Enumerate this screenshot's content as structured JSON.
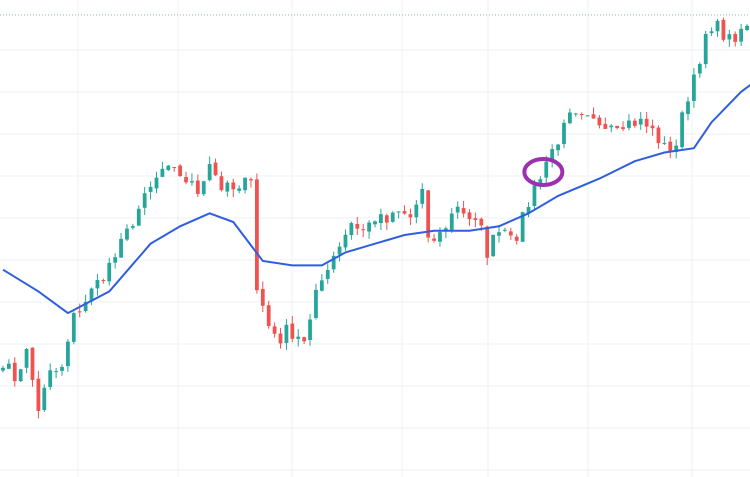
{
  "colors": {
    "up": "#26a69a",
    "down": "#ef5350",
    "ma": "#2f5fe0",
    "grid": "#eef0f3",
    "annotation": "#9b30b0",
    "background": "#ffffff"
  },
  "chart_data": {
    "type": "candlestick",
    "title": "",
    "xlabel": "",
    "ylabel": "",
    "grid": true,
    "legend": "none",
    "ylim": [
      0,
      100
    ],
    "overlay": {
      "type": "moving-average",
      "color": "#2f5fe0"
    },
    "annotation": {
      "shape": "ellipse",
      "color": "#9b30b0",
      "near_index": 91
    },
    "anchors": [
      [
        0,
        21
      ],
      [
        2,
        17
      ],
      [
        4,
        23
      ],
      [
        6,
        10
      ],
      [
        8,
        18
      ],
      [
        10,
        19
      ],
      [
        12,
        31
      ],
      [
        15,
        37
      ],
      [
        19,
        45
      ],
      [
        23,
        56
      ],
      [
        27,
        65
      ],
      [
        30,
        64
      ],
      [
        33,
        60
      ],
      [
        35,
        67
      ],
      [
        37,
        61
      ],
      [
        40,
        60
      ],
      [
        42,
        64
      ],
      [
        43,
        38
      ],
      [
        45,
        29
      ],
      [
        47,
        26
      ],
      [
        48,
        28
      ],
      [
        50,
        27
      ],
      [
        51,
        26
      ],
      [
        52,
        30
      ],
      [
        53,
        36
      ],
      [
        55,
        43
      ],
      [
        57,
        48
      ],
      [
        59,
        53
      ],
      [
        61,
        51
      ],
      [
        63,
        54
      ],
      [
        65,
        53
      ],
      [
        67,
        55
      ],
      [
        69,
        54
      ],
      [
        71,
        60
      ],
      [
        72,
        48
      ],
      [
        74,
        50
      ],
      [
        77,
        57
      ],
      [
        79,
        54
      ],
      [
        81,
        51
      ],
      [
        82,
        46
      ],
      [
        84,
        52
      ],
      [
        86,
        51
      ],
      [
        87,
        50
      ],
      [
        90,
        61
      ],
      [
        92,
        67
      ],
      [
        94,
        72
      ],
      [
        96,
        77
      ],
      [
        100,
        76
      ],
      [
        104,
        76
      ],
      [
        108,
        76
      ],
      [
        110,
        74
      ],
      [
        112,
        70
      ],
      [
        113,
        70
      ],
      [
        114,
        71
      ],
      [
        115,
        77
      ],
      [
        117,
        87
      ],
      [
        119,
        95
      ],
      [
        121,
        98
      ],
      [
        123,
        95
      ],
      [
        125,
        96
      ],
      [
        126,
        98
      ]
    ],
    "n_candles": 127,
    "ma_points": [
      [
        0,
        42
      ],
      [
        6,
        37
      ],
      [
        11,
        32
      ],
      [
        18,
        37
      ],
      [
        25,
        48
      ],
      [
        30,
        52
      ],
      [
        35,
        55
      ],
      [
        39,
        53
      ],
      [
        44,
        44
      ],
      [
        49,
        43
      ],
      [
        54,
        43
      ],
      [
        58,
        46
      ],
      [
        63,
        48
      ],
      [
        68,
        50
      ],
      [
        73,
        51
      ],
      [
        79,
        51
      ],
      [
        84,
        52
      ],
      [
        89,
        55
      ],
      [
        94,
        59
      ],
      [
        101,
        63
      ],
      [
        107,
        67
      ],
      [
        112,
        69
      ],
      [
        117,
        70
      ],
      [
        120,
        76
      ],
      [
        125,
        83
      ],
      [
        132,
        90
      ],
      [
        137,
        94
      ]
    ]
  }
}
